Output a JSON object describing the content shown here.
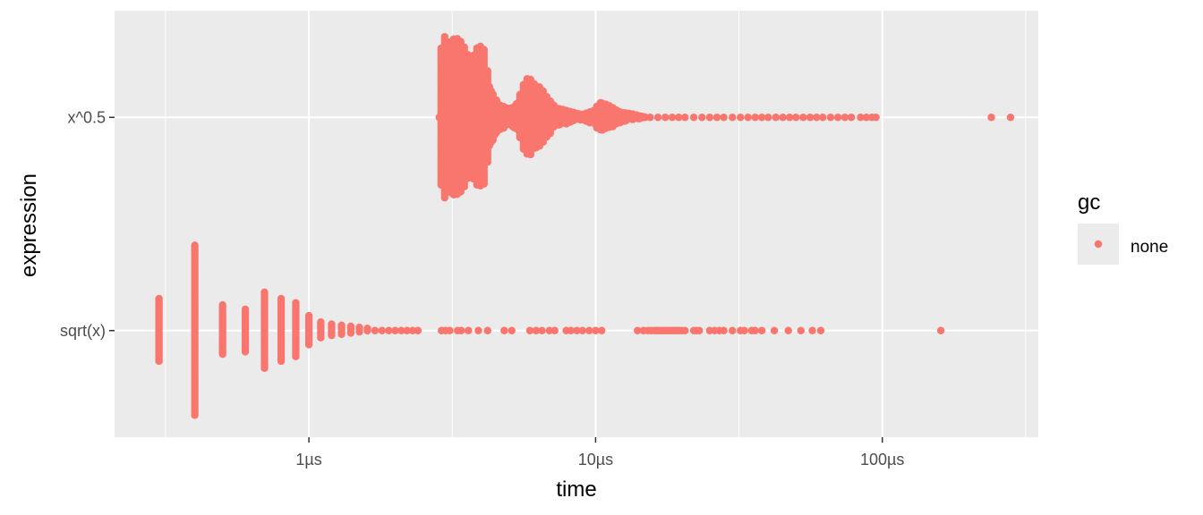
{
  "chart_data": {
    "type": "scatter",
    "x_scale": "log10",
    "xlim_us": [
      0.21,
      350
    ],
    "x_ticks": [
      {
        "value": 1,
        "label": "1µs"
      },
      {
        "value": 10,
        "label": "10µs"
      },
      {
        "value": 100,
        "label": "100µs"
      }
    ],
    "x_minor_ticks": [
      0.3162,
      3.162,
      31.62,
      316.2
    ],
    "categories": [
      "sqrt(x)",
      "x^0.5"
    ],
    "xlabel": "time",
    "ylabel": "expression",
    "grid": true,
    "legend": {
      "title": "gc",
      "placement": "right",
      "entries": [
        {
          "label": "none",
          "color": "#F8766D"
        }
      ]
    },
    "series": [
      {
        "category": "x^0.5",
        "color": "#F8766D",
        "density_profile": [
          {
            "x": 2.85,
            "spread": 0.0
          },
          {
            "x": 2.9,
            "spread": 0.4
          },
          {
            "x": 3.0,
            "spread": 0.41
          },
          {
            "x": 3.1,
            "spread": 0.4
          },
          {
            "x": 3.3,
            "spread": 0.37
          },
          {
            "x": 3.5,
            "spread": 0.34
          },
          {
            "x": 3.7,
            "spread": 0.31
          },
          {
            "x": 3.9,
            "spread": 0.34
          },
          {
            "x": 4.1,
            "spread": 0.32
          },
          {
            "x": 4.3,
            "spread": 0.15
          },
          {
            "x": 4.6,
            "spread": 0.06
          },
          {
            "x": 5.0,
            "spread": 0.04
          },
          {
            "x": 5.3,
            "spread": 0.07
          },
          {
            "x": 5.7,
            "spread": 0.18
          },
          {
            "x": 6.0,
            "spread": 0.19
          },
          {
            "x": 6.4,
            "spread": 0.15
          },
          {
            "x": 6.8,
            "spread": 0.09
          },
          {
            "x": 7.3,
            "spread": 0.05
          },
          {
            "x": 8.0,
            "spread": 0.03
          },
          {
            "x": 9.0,
            "spread": 0.015
          },
          {
            "x": 9.8,
            "spread": 0.03
          },
          {
            "x": 10.4,
            "spread": 0.08
          },
          {
            "x": 11.0,
            "spread": 0.06
          },
          {
            "x": 12.0,
            "spread": 0.03
          },
          {
            "x": 13.5,
            "spread": 0.015
          },
          {
            "x": 15.0,
            "spread": 0.0
          }
        ],
        "x": [
          15.5,
          16.5,
          17.5,
          18.5,
          19.5,
          20.5,
          22,
          23.5,
          25,
          26.5,
          28,
          30,
          32,
          34,
          36,
          38,
          40,
          42.5,
          45,
          47.5,
          50,
          53,
          56,
          59,
          62,
          66,
          70,
          74,
          78,
          84,
          88,
          92,
          95,
          240,
          280
        ]
      },
      {
        "category": "sqrt(x)",
        "color": "#F8766D",
        "stripes": [
          {
            "x": 0.3,
            "spread": 0.15
          },
          {
            "x": 0.4,
            "spread": 0.4
          },
          {
            "x": 0.5,
            "spread": 0.12
          },
          {
            "x": 0.6,
            "spread": 0.1
          },
          {
            "x": 0.7,
            "spread": 0.18
          },
          {
            "x": 0.8,
            "spread": 0.15
          },
          {
            "x": 0.9,
            "spread": 0.13
          },
          {
            "x": 1.0,
            "spread": 0.07
          },
          {
            "x": 1.1,
            "spread": 0.04
          },
          {
            "x": 1.2,
            "spread": 0.03
          },
          {
            "x": 1.3,
            "spread": 0.025
          },
          {
            "x": 1.4,
            "spread": 0.02
          },
          {
            "x": 1.5,
            "spread": 0.015
          },
          {
            "x": 1.6,
            "spread": 0.01
          }
        ],
        "x": [
          1.7,
          1.8,
          1.9,
          2.0,
          2.1,
          2.2,
          2.3,
          2.4,
          2.9,
          3.0,
          3.1,
          3.3,
          3.4,
          3.6,
          3.9,
          4.2,
          4.8,
          5.1,
          5.9,
          6.2,
          6.5,
          6.9,
          7.2,
          7.9,
          8.2,
          8.6,
          9.0,
          9.5,
          10.0,
          10.5,
          14,
          14.7,
          15.2,
          15.6,
          16,
          16.3,
          16.6,
          16.9,
          17.2,
          17.5,
          17.8,
          18.1,
          18.4,
          18.7,
          19,
          19.3,
          19.6,
          20,
          20.5,
          22,
          22.5,
          23,
          25,
          26,
          27,
          28,
          30,
          32,
          33,
          35,
          36,
          38,
          42,
          47,
          52,
          57,
          61,
          160
        ]
      }
    ]
  }
}
